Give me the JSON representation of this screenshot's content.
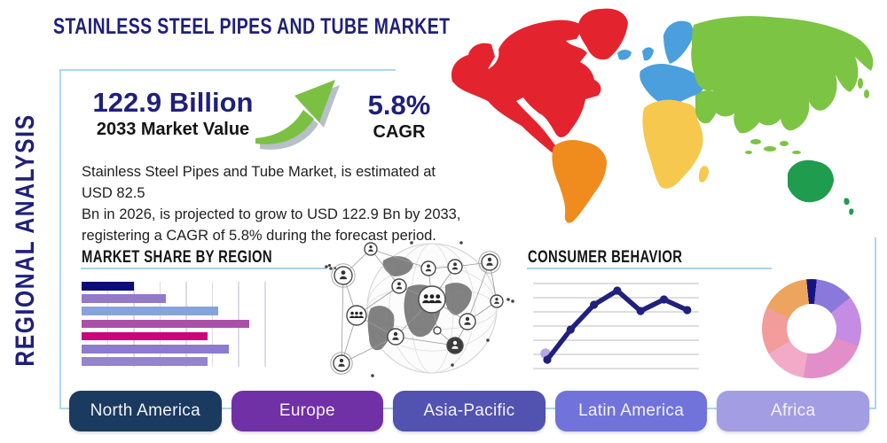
{
  "title": "STAINLESS STEEL PIPES AND TUBE MARKET",
  "side_label": "REGIONAL ANALYSIS",
  "stats": {
    "market_value": "122.9 Billion",
    "market_value_label": "2033 Market Value",
    "cagr_value": "5.8%",
    "cagr_label": "CAGR"
  },
  "description": [
    "Stainless Steel Pipes and Tube Market, is estimated at USD 82.5",
    "Bn in 2026, is projected to grow to USD 122.9 Bn by 2033,",
    "registering a CAGR of 5.8% during the forecast period."
  ],
  "sections": {
    "market_share": "MARKET SHARE BY REGION",
    "consumer_behavior": "CONSUMER BEHAVIOR"
  },
  "region_buttons": [
    {
      "label": "North America",
      "color": "#1b3a5f"
    },
    {
      "label": "Europe",
      "color": "#7030a6"
    },
    {
      "label": "Asia-Pacific",
      "color": "#5252b0"
    },
    {
      "label": "Latin America",
      "color": "#7173da"
    },
    {
      "label": "Africa",
      "color": "#a39de4"
    }
  ],
  "map": {
    "regions": [
      {
        "name": "North America",
        "color": "#e3242e"
      },
      {
        "name": "South America",
        "color": "#f08c1e"
      },
      {
        "name": "Europe",
        "color": "#4a9fdc"
      },
      {
        "name": "Africa",
        "color": "#f6c94e"
      },
      {
        "name": "Asia",
        "color": "#7cc443"
      },
      {
        "name": "Australia",
        "color": "#1f9c4e"
      }
    ]
  },
  "colors": {
    "navy": "#20207a",
    "box_border": "#aed7ea",
    "underline": "#a9d4e6",
    "arrow_green": "#7cc043",
    "line_chart": "#20207d",
    "line_halo": "#b9a6e6"
  },
  "chart_data": [
    {
      "id": "market-share-by-region",
      "type": "bar",
      "orientation": "horizontal",
      "title": "MARKET SHARE BY REGION",
      "values": [
        2.0,
        3.2,
        5.2,
        6.4,
        4.8,
        5.6,
        4.8
      ],
      "colors": [
        "#0d0d78",
        "#9478cc",
        "#86a4dc",
        "#aa4fa8",
        "#c9067c",
        "#8d7bcc",
        "#9583cc"
      ],
      "xlim": [
        0,
        7
      ],
      "gridlines": 7,
      "tick_labels_visible": false
    },
    {
      "id": "consumer-behavior",
      "type": "line",
      "title": "CONSUMER BEHAVIOR",
      "x": [
        1,
        2,
        3,
        4,
        5,
        6,
        7
      ],
      "values": [
        12,
        46,
        74,
        90,
        67,
        80,
        68
      ],
      "ylim": [
        0,
        100
      ],
      "grid": true,
      "gridlines": 7,
      "tick_labels_visible": false,
      "marker": "circle"
    },
    {
      "id": "regional-share-donut",
      "type": "pie",
      "donut": true,
      "start_angle_deg": -6,
      "segments": [
        {
          "color": "#15157e",
          "value": 3.3
        },
        {
          "color": "#8a78da",
          "value": 12.5
        },
        {
          "color": "#c48ce2",
          "value": 16.5
        },
        {
          "color": "#e28ec8",
          "value": 22.0
        },
        {
          "color": "#f2aac8",
          "value": 14.0
        },
        {
          "color": "#f29c9c",
          "value": 15.5
        },
        {
          "color": "#eda45e",
          "value": 16.2
        }
      ],
      "labels_visible": false
    }
  ]
}
